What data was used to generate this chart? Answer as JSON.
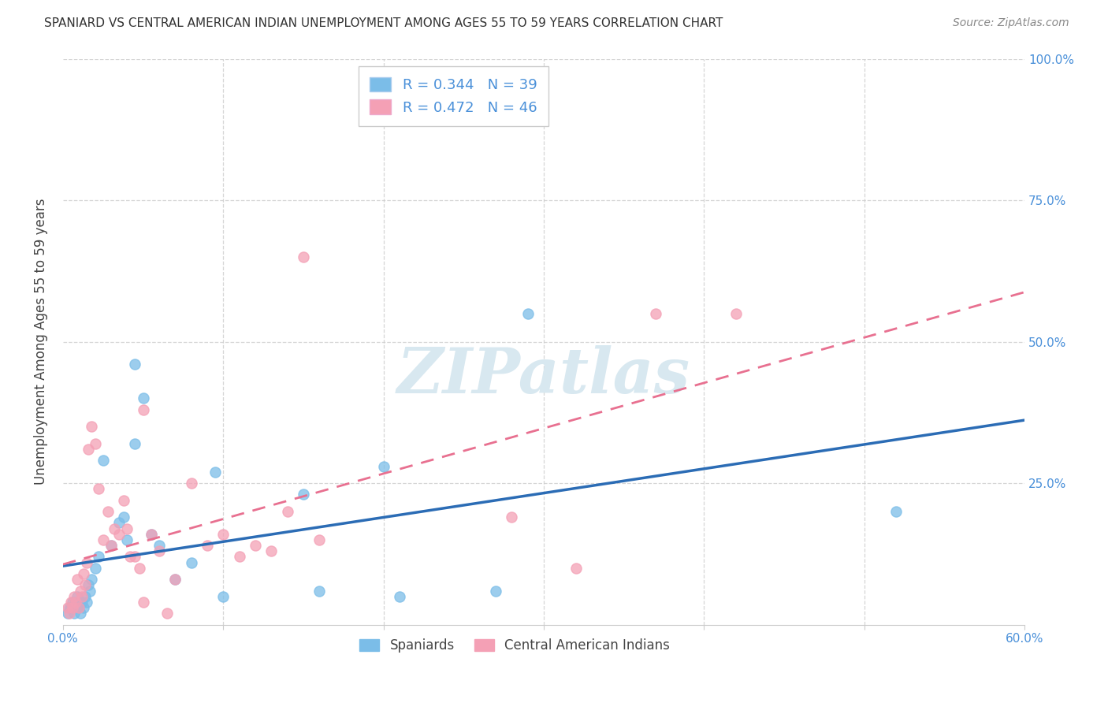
{
  "title": "SPANIARD VS CENTRAL AMERICAN INDIAN UNEMPLOYMENT AMONG AGES 55 TO 59 YEARS CORRELATION CHART",
  "source": "Source: ZipAtlas.com",
  "ylabel": "Unemployment Among Ages 55 to 59 years",
  "xlim": [
    0.0,
    0.6
  ],
  "ylim": [
    0.0,
    1.0
  ],
  "xticks": [
    0.0,
    0.1,
    0.2,
    0.3,
    0.4,
    0.5,
    0.6
  ],
  "xticklabels": [
    "0.0%",
    "",
    "",
    "",
    "",
    "",
    "60.0%"
  ],
  "yticks": [
    0.0,
    0.25,
    0.5,
    0.75,
    1.0
  ],
  "yticklabels_right": [
    "",
    "25.0%",
    "50.0%",
    "75.0%",
    "100.0%"
  ],
  "spaniard_color": "#7bbde8",
  "central_color": "#f4a0b5",
  "spaniard_line_color": "#2b6cb5",
  "central_line_color": "#e87090",
  "spaniard_R": 0.344,
  "spaniard_N": 39,
  "central_R": 0.472,
  "central_N": 46,
  "legend_label1": "Spaniards",
  "legend_label2": "Central American Indians",
  "watermark": "ZIPatlas",
  "tick_label_color": "#4a90d9",
  "grid_color": "#cccccc",
  "spaniard_x": [
    0.003,
    0.004,
    0.005,
    0.006,
    0.007,
    0.008,
    0.009,
    0.01,
    0.011,
    0.012,
    0.013,
    0.014,
    0.015,
    0.016,
    0.017,
    0.018,
    0.02,
    0.022,
    0.025,
    0.03,
    0.035,
    0.038,
    0.04,
    0.045,
    0.05,
    0.055,
    0.06,
    0.07,
    0.08,
    0.095,
    0.1,
    0.15,
    0.16,
    0.2,
    0.21,
    0.27,
    0.29,
    0.52,
    0.045
  ],
  "spaniard_y": [
    0.02,
    0.03,
    0.03,
    0.04,
    0.02,
    0.04,
    0.05,
    0.03,
    0.02,
    0.04,
    0.03,
    0.05,
    0.04,
    0.07,
    0.06,
    0.08,
    0.1,
    0.12,
    0.29,
    0.14,
    0.18,
    0.19,
    0.15,
    0.46,
    0.4,
    0.16,
    0.14,
    0.08,
    0.11,
    0.27,
    0.05,
    0.23,
    0.06,
    0.28,
    0.05,
    0.06,
    0.55,
    0.2,
    0.32
  ],
  "central_x": [
    0.003,
    0.004,
    0.005,
    0.006,
    0.007,
    0.008,
    0.009,
    0.01,
    0.011,
    0.012,
    0.013,
    0.014,
    0.015,
    0.016,
    0.018,
    0.02,
    0.022,
    0.025,
    0.028,
    0.03,
    0.032,
    0.035,
    0.038,
    0.04,
    0.042,
    0.045,
    0.048,
    0.05,
    0.055,
    0.06,
    0.065,
    0.07,
    0.08,
    0.09,
    0.1,
    0.11,
    0.12,
    0.13,
    0.14,
    0.15,
    0.16,
    0.28,
    0.32,
    0.37,
    0.42,
    0.05
  ],
  "central_y": [
    0.03,
    0.02,
    0.04,
    0.03,
    0.05,
    0.04,
    0.08,
    0.03,
    0.06,
    0.05,
    0.09,
    0.07,
    0.11,
    0.31,
    0.35,
    0.32,
    0.24,
    0.15,
    0.2,
    0.14,
    0.17,
    0.16,
    0.22,
    0.17,
    0.12,
    0.12,
    0.1,
    0.38,
    0.16,
    0.13,
    0.02,
    0.08,
    0.25,
    0.14,
    0.16,
    0.12,
    0.14,
    0.13,
    0.2,
    0.65,
    0.15,
    0.19,
    0.1,
    0.55,
    0.55,
    0.04
  ]
}
